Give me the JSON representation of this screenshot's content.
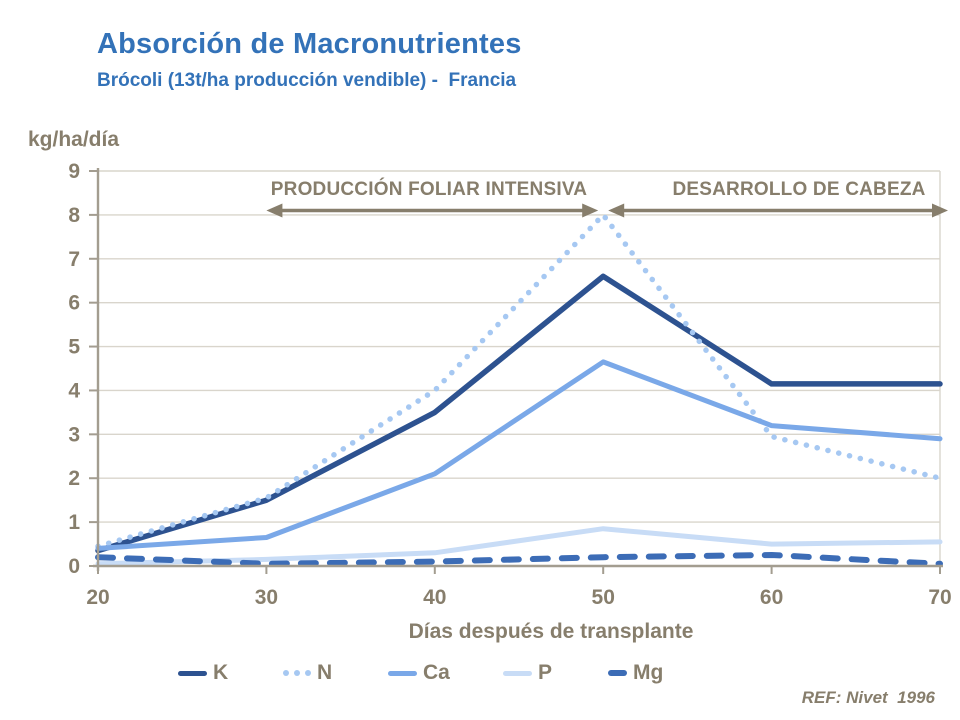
{
  "theme": {
    "background": "#FFFFFF",
    "title_color": "#3372B8",
    "text_color": "#877E6C",
    "axis_color": "#A39D90",
    "grid_color": "#D9D5CC"
  },
  "chart_data": {
    "type": "line",
    "title": "Absorción de Macronutrientes",
    "subtitle": "Brócoli (13t/ha producción vendible) -  Francia",
    "y_unit_label": "kg/ha/día",
    "xlabel": "Días después de transplante",
    "reference": "REF: Nivet  1996",
    "x": [
      20,
      30,
      40,
      50,
      60,
      70
    ],
    "xlim": [
      20,
      70
    ],
    "ylim": [
      0,
      9
    ],
    "y_tick_step": 1,
    "grid": true,
    "legend_position": "bottom",
    "series": [
      {
        "name": "K",
        "style": "solid",
        "color": "#2D5290",
        "width": 5.5,
        "values": [
          0.35,
          1.5,
          3.5,
          6.6,
          4.15,
          4.15
        ]
      },
      {
        "name": "N",
        "style": "dotted",
        "color": "#A6C8F2",
        "width": 5.5,
        "values": [
          0.45,
          1.55,
          4.0,
          8.0,
          2.95,
          2.0
        ]
      },
      {
        "name": "Ca",
        "style": "solid",
        "color": "#7AA8E8",
        "width": 5,
        "values": [
          0.4,
          0.65,
          2.1,
          4.65,
          3.2,
          2.9
        ]
      },
      {
        "name": "P",
        "style": "solid",
        "color": "#C8DCF6",
        "width": 5,
        "values": [
          0.05,
          0.15,
          0.3,
          0.85,
          0.5,
          0.55
        ]
      },
      {
        "name": "Mg",
        "style": "dashed",
        "color": "#3C6CB6",
        "width": 6,
        "values": [
          0.2,
          0.05,
          0.1,
          0.2,
          0.25,
          0.05
        ]
      }
    ],
    "annotations": [
      {
        "label": "PRODUCCIÓN FOLIAR INTENSIVA",
        "from_x": 30,
        "to_x": 50,
        "arrow_y": 8.1
      },
      {
        "label": "DESARROLLO DE CABEZA",
        "from_x": 50,
        "to_x": 70,
        "arrow_y": 8.1
      }
    ]
  }
}
